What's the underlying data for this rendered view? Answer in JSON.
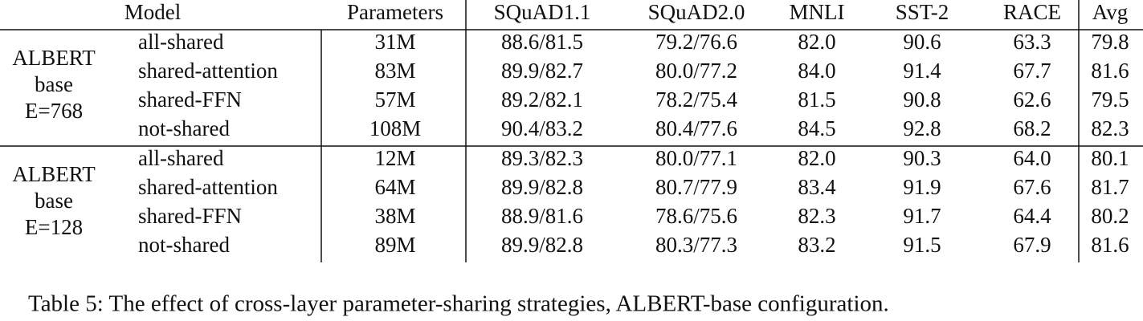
{
  "table": {
    "header": [
      "Model",
      "Parameters",
      "SQuAD1.1",
      "SQuAD2.0",
      "MNLI",
      "SST-2",
      "RACE",
      "Avg"
    ],
    "groups": [
      {
        "label": [
          "ALBERT",
          "base",
          "E=768"
        ],
        "rows": [
          [
            "all-shared",
            "31M",
            "88.6/81.5",
            "79.2/76.6",
            "82.0",
            "90.6",
            "63.3",
            "79.8"
          ],
          [
            "shared-attention",
            "83M",
            "89.9/82.7",
            "80.0/77.2",
            "84.0",
            "91.4",
            "67.7",
            "81.6"
          ],
          [
            "shared-FFN",
            "57M",
            "89.2/82.1",
            "78.2/75.4",
            "81.5",
            "90.8",
            "62.6",
            "79.5"
          ],
          [
            "not-shared",
            "108M",
            "90.4/83.2",
            "80.4/77.6",
            "84.5",
            "92.8",
            "68.2",
            "82.3"
          ]
        ]
      },
      {
        "label": [
          "ALBERT",
          "base",
          "E=128"
        ],
        "rows": [
          [
            "all-shared",
            "12M",
            "89.3/82.3",
            "80.0/77.1",
            "82.0",
            "90.3",
            "64.0",
            "80.1"
          ],
          [
            "shared-attention",
            "64M",
            "89.9/82.8",
            "80.7/77.9",
            "83.4",
            "91.9",
            "67.6",
            "81.7"
          ],
          [
            "shared-FFN",
            "38M",
            "88.9/81.6",
            "78.6/75.6",
            "82.3",
            "91.7",
            "64.4",
            "80.2"
          ],
          [
            "not-shared",
            "89M",
            "89.9/82.8",
            "80.3/77.3",
            "83.2",
            "91.5",
            "67.9",
            "81.6"
          ]
        ]
      }
    ]
  },
  "caption": "Table 5: The effect of cross-layer parameter-sharing strategies, ALBERT-base configuration."
}
